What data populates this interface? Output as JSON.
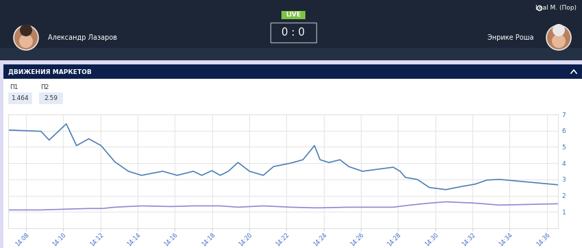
{
  "header": {
    "player1": "Александр Лазаров",
    "player2": "Энрике Роша",
    "status": "LIVE",
    "score": "0 : 0",
    "user": "Leal M. (Пор)"
  },
  "section": {
    "title": "ДВИЖЕНИЯ МАРКЕТОВ"
  },
  "chart_data": {
    "type": "line",
    "grid": true,
    "xlim": [
      7.05,
      36.6
    ],
    "xticks": [
      {
        "value": 8,
        "label": "14:08"
      },
      {
        "value": 10,
        "label": "14:10"
      },
      {
        "value": 12,
        "label": "14:12"
      },
      {
        "value": 14,
        "label": "14:14"
      },
      {
        "value": 16,
        "label": "14:16"
      },
      {
        "value": 18,
        "label": "14:18"
      },
      {
        "value": 20,
        "label": "14:20"
      },
      {
        "value": 22,
        "label": "14:22"
      },
      {
        "value": 24,
        "label": "14:24"
      },
      {
        "value": 26,
        "label": "14:26"
      },
      {
        "value": 28,
        "label": "14:28"
      },
      {
        "value": 30,
        "label": "14:30"
      },
      {
        "value": 32,
        "label": "14:32"
      },
      {
        "value": 34,
        "label": "14:34"
      },
      {
        "value": 36,
        "label": "14:36"
      }
    ],
    "ylim": [
      0,
      7
    ],
    "yticks": [
      1,
      2,
      3,
      4,
      5,
      6,
      7
    ],
    "series": [
      {
        "name": "П1",
        "odds": 1.464,
        "color": "#8c88d6",
        "x": [
          7.05,
          8.81,
          10.17,
          11.38,
          12.12,
          12.78,
          14.21,
          15.79,
          17.0,
          18.44,
          19.4,
          20.76,
          22.23,
          23.51,
          23.81,
          25.35,
          27.74,
          28.66,
          29.69,
          30.57,
          32.15,
          33.44,
          36.57
        ],
        "values": [
          1.12,
          1.12,
          1.17,
          1.21,
          1.21,
          1.29,
          1.37,
          1.33,
          1.37,
          1.37,
          1.29,
          1.37,
          1.29,
          1.25,
          1.25,
          1.29,
          1.29,
          1.42,
          1.54,
          1.62,
          1.54,
          1.42,
          1.5
        ]
      },
      {
        "name": "П2",
        "odds": 2.59,
        "color": "#4a7fb5",
        "x": [
          7.05,
          8.81,
          9.25,
          10.17,
          10.72,
          11.38,
          12.04,
          12.78,
          13.51,
          14.21,
          15.35,
          16.13,
          17.0,
          17.45,
          18.0,
          18.44,
          18.88,
          19.4,
          20.02,
          20.76,
          21.31,
          22.23,
          22.89,
          23.51,
          23.81,
          24.29,
          24.88,
          25.35,
          26.09,
          27.74,
          28.11,
          28.4,
          29.03,
          29.69,
          30.57,
          31.31,
          32.15,
          32.78,
          33.44,
          36.57
        ],
        "values": [
          6.04,
          5.96,
          5.42,
          6.42,
          5.08,
          5.5,
          5.08,
          4.08,
          3.5,
          3.25,
          3.5,
          3.25,
          3.5,
          3.25,
          3.54,
          3.25,
          3.5,
          4.04,
          3.5,
          3.25,
          3.79,
          4.0,
          4.21,
          5.08,
          4.21,
          4.04,
          4.21,
          3.79,
          3.5,
          3.75,
          3.5,
          3.12,
          3.0,
          2.5,
          2.37,
          2.54,
          2.71,
          2.96,
          3.0,
          2.67
        ]
      }
    ]
  }
}
